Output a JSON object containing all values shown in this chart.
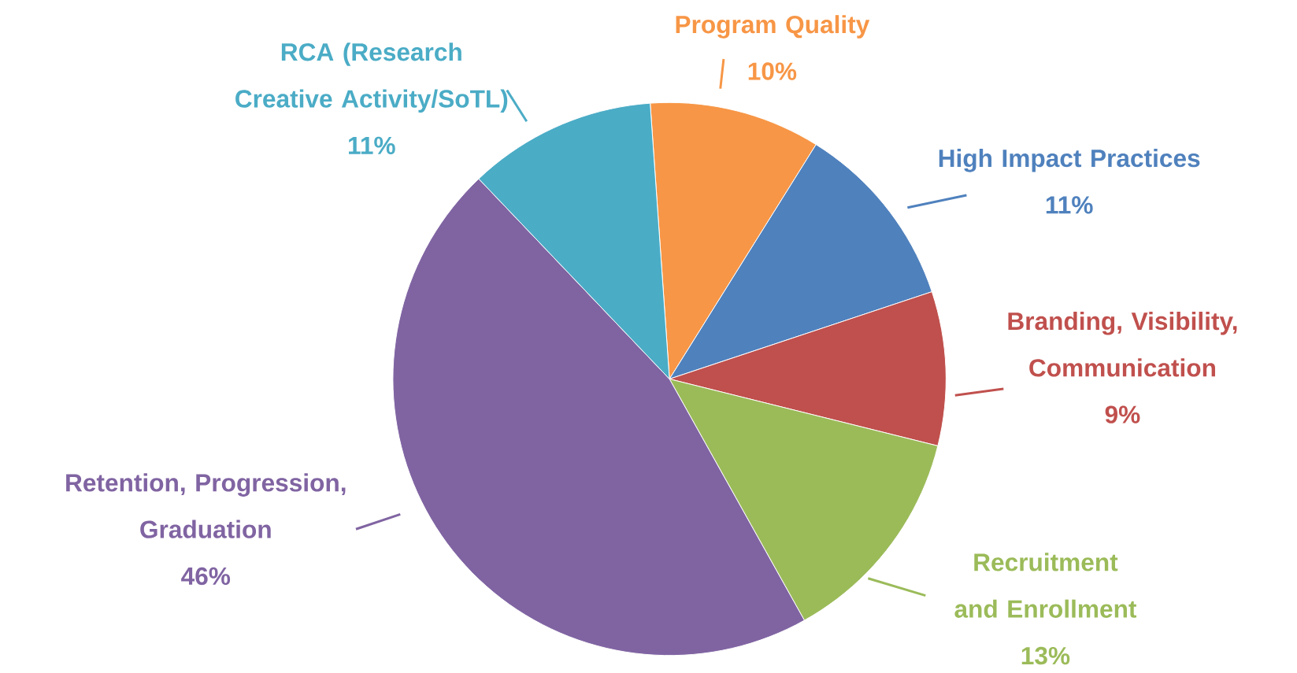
{
  "chart_data": {
    "type": "pie",
    "categories": [
      "Program Quality",
      "High Impact Practices",
      "Branding, Visibility, Communication",
      "Recruitment and Enrollment",
      "Retention, Progression, Graduation",
      "RCA (Research Creative Activity/SoTL)"
    ],
    "values": [
      10,
      11,
      9,
      13,
      46,
      11
    ],
    "value_labels": [
      "10%",
      "11%",
      "9%",
      "13%",
      "46%",
      "11%"
    ],
    "colors": [
      "#f79646",
      "#4f81bd",
      "#c0504d",
      "#9bbb59",
      "#8064a2",
      "#4bacc6"
    ]
  }
}
